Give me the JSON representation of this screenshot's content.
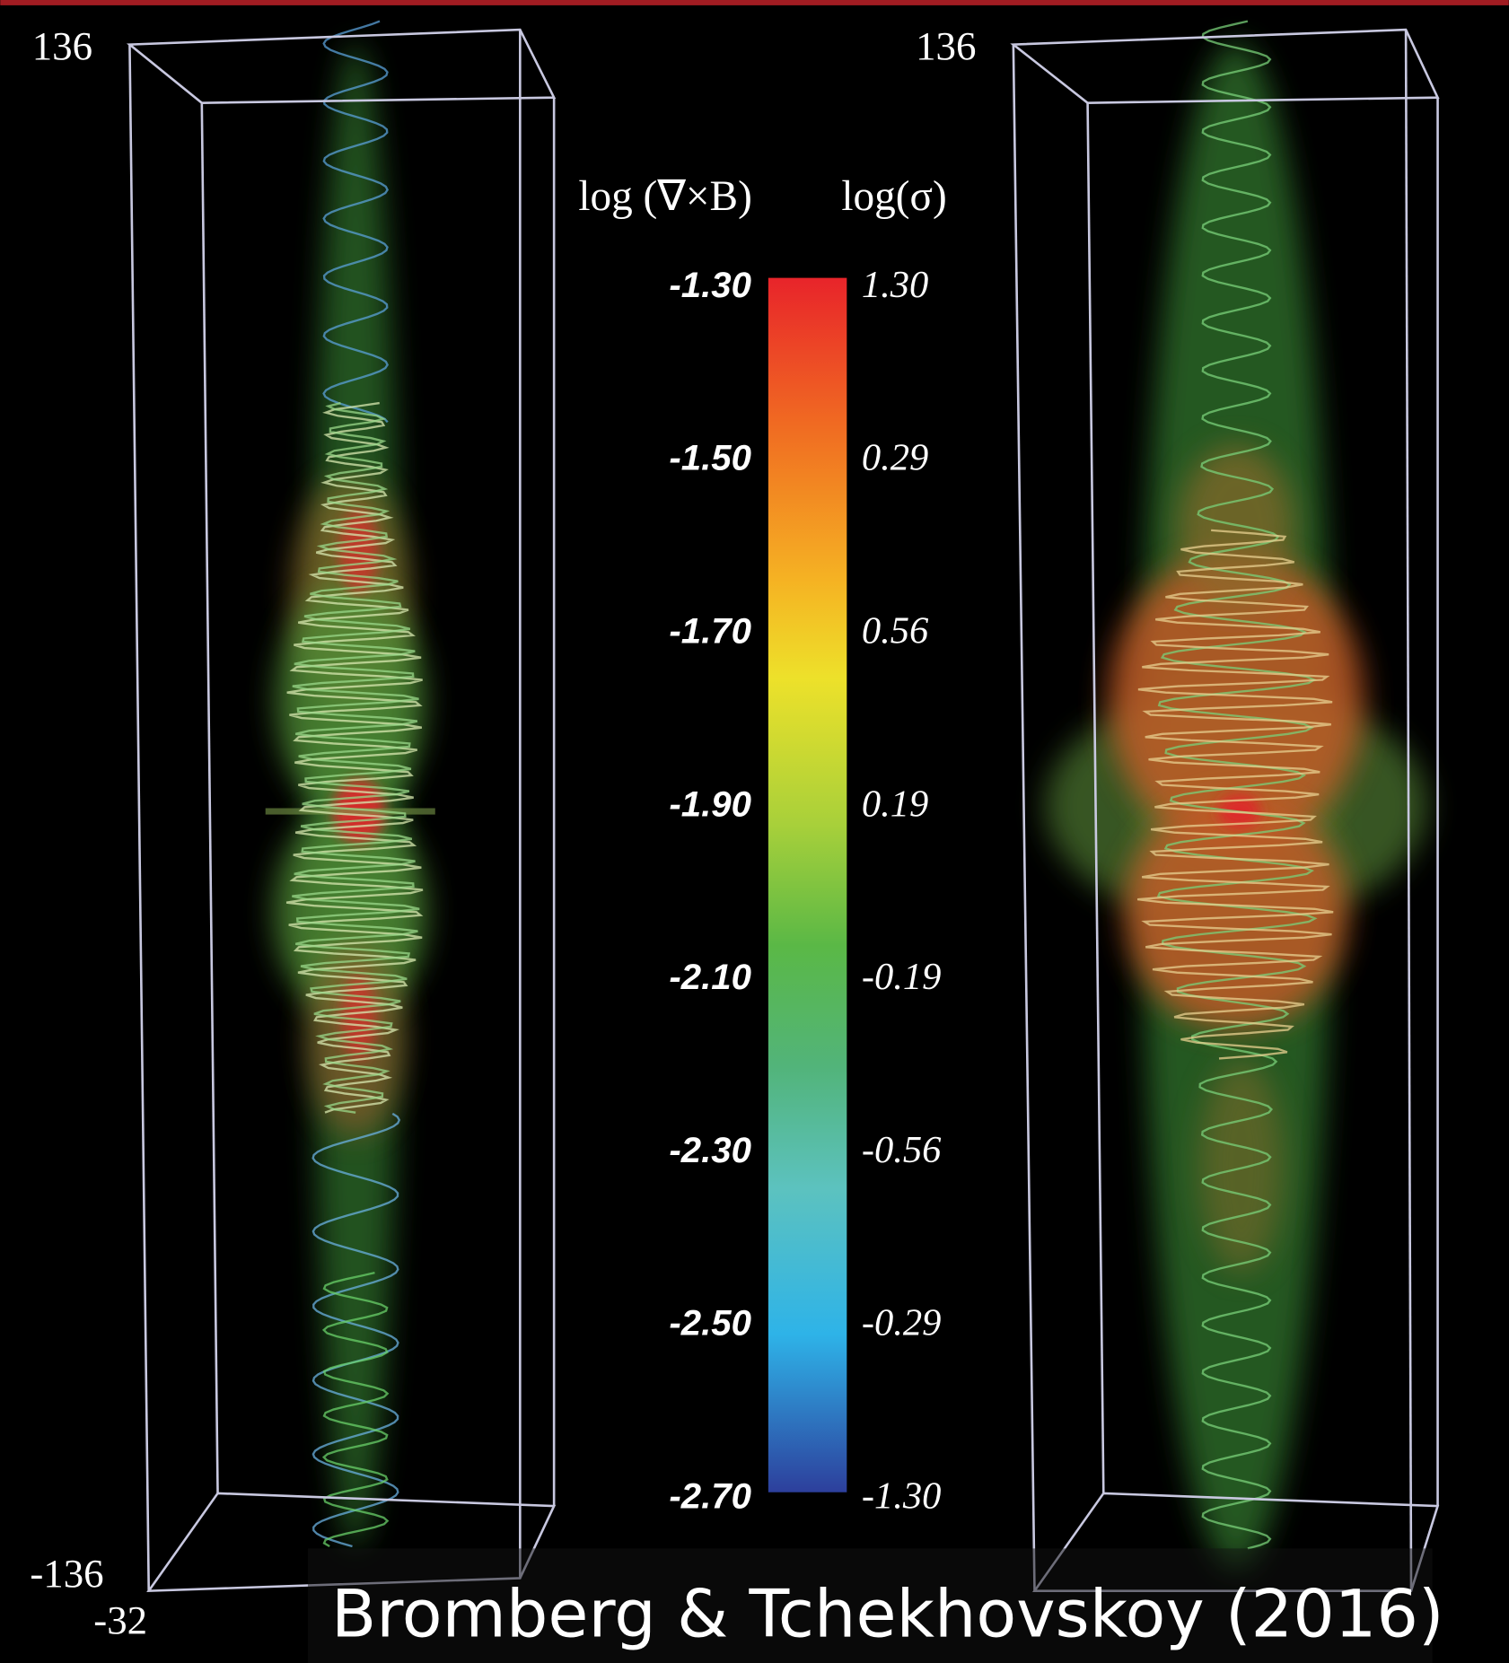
{
  "panels": [
    {
      "y_top": "136",
      "y_bottom": "-136",
      "x_left": "-32"
    },
    {
      "y_top": "136"
    }
  ],
  "colorbar": {
    "left_title": "log (∇×B)",
    "right_title": "log(σ)",
    "left_ticks": [
      "-1.30",
      "-1.50",
      "-1.70",
      "-1.90",
      "-2.10",
      "-2.30",
      "-2.50",
      "-2.70"
    ],
    "right_ticks": [
      "1.30",
      "0.29",
      "0.56",
      "0.19",
      "-0.19",
      "-0.56",
      "-0.29",
      "-1.30"
    ]
  },
  "credit": "Bromberg & Tchekhovskoy (2016)"
}
